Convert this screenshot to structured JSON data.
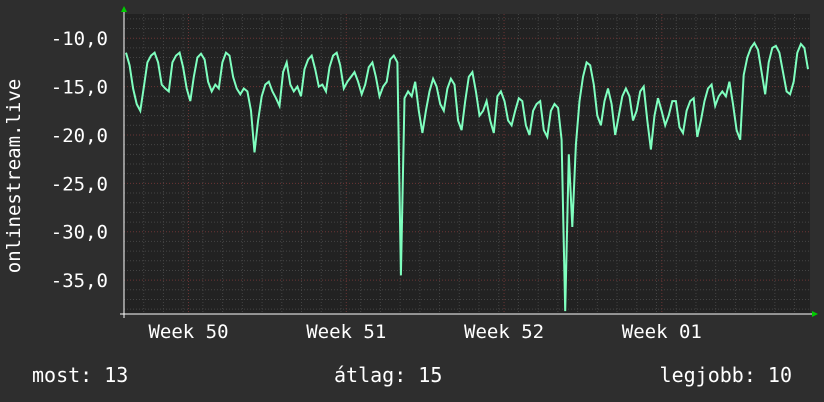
{
  "colors": {
    "background": "#2e2e2e",
    "plot_background": "#222222",
    "grid_major": "#6b3535",
    "grid_minor": "#444444",
    "line": "#7fffbf",
    "axis_arrow": "#00cc00"
  },
  "chart_data": {
    "type": "line",
    "ylabel": "onlinestream.live",
    "ylim": [
      -38.5,
      -7.5
    ],
    "yticks": [
      -10,
      -15,
      -20,
      -25,
      -30,
      -35
    ],
    "ytick_labels": [
      "-10,0",
      "-15,0",
      "-20,0",
      "-25,0",
      "-30,0",
      "-35,0"
    ],
    "xlim": [
      0,
      100
    ],
    "xticks": [
      {
        "x": 9.4,
        "label": "Week 50"
      },
      {
        "x": 32.4,
        "label": "Week 51"
      },
      {
        "x": 55.4,
        "label": "Week 52"
      },
      {
        "x": 78.4,
        "label": "Week 01"
      }
    ],
    "grid": true,
    "series": [
      {
        "values": [
          -11.5,
          -12.8,
          -15.2,
          -16.8,
          -17.5,
          -15.0,
          -12.5,
          -11.8,
          -11.5,
          -12.5,
          -14.8,
          -15.2,
          -15.5,
          -12.5,
          -11.8,
          -11.5,
          -13.0,
          -15.2,
          -16.5,
          -14.0,
          -12.0,
          -11.6,
          -12.2,
          -14.5,
          -15.5,
          -14.8,
          -15.2,
          -12.5,
          -11.5,
          -11.8,
          -14.0,
          -15.2,
          -15.8,
          -15.2,
          -15.5,
          -17.5,
          -21.8,
          -18.5,
          -16.0,
          -14.8,
          -14.5,
          -15.5,
          -16.2,
          -17.0,
          -13.5,
          -12.5,
          -14.8,
          -15.5,
          -15.0,
          -16.0,
          -13.2,
          -12.2,
          -11.8,
          -13.2,
          -15.0,
          -14.8,
          -15.5,
          -13.0,
          -11.8,
          -11.5,
          -12.8,
          -15.2,
          -14.5,
          -14.0,
          -13.5,
          -14.5,
          -15.8,
          -14.8,
          -13.0,
          -12.5,
          -14.0,
          -16.0,
          -15.0,
          -14.5,
          -12.2,
          -11.8,
          -12.5,
          -34.5,
          -16.2,
          -15.5,
          -16.0,
          -14.5,
          -17.5,
          -19.8,
          -17.5,
          -15.5,
          -14.2,
          -15.0,
          -16.8,
          -17.5,
          -15.2,
          -14.2,
          -14.8,
          -18.5,
          -19.5,
          -16.5,
          -14.0,
          -13.5,
          -15.5,
          -18.0,
          -17.5,
          -16.5,
          -18.5,
          -19.8,
          -16.0,
          -15.5,
          -16.5,
          -18.5,
          -19.0,
          -17.5,
          -16.2,
          -16.5,
          -19.0,
          -20.0,
          -17.5,
          -16.8,
          -16.5,
          -19.5,
          -20.2,
          -17.5,
          -16.8,
          -17.2,
          -20.5,
          -38.2,
          -22.0,
          -29.5,
          -21.0,
          -16.5,
          -14.0,
          -12.5,
          -12.8,
          -14.8,
          -18.0,
          -19.0,
          -16.5,
          -15.2,
          -16.8,
          -20.0,
          -18.0,
          -16.0,
          -15.2,
          -16.0,
          -18.5,
          -17.5,
          -15.5,
          -15.0,
          -18.5,
          -21.5,
          -18.0,
          -16.2,
          -17.5,
          -19.0,
          -18.0,
          -16.5,
          -16.5,
          -19.2,
          -19.8,
          -17.5,
          -16.5,
          -16.2,
          -20.2,
          -18.5,
          -16.5,
          -15.2,
          -14.8,
          -17.0,
          -16.0,
          -15.5,
          -16.0,
          -14.5,
          -16.8,
          -19.5,
          -20.5,
          -13.8,
          -12.0,
          -11.0,
          -10.5,
          -11.2,
          -13.5,
          -15.8,
          -12.5,
          -11.0,
          -10.8,
          -11.5,
          -13.5,
          -15.5,
          -15.8,
          -14.5,
          -11.5,
          -10.6,
          -11.0,
          -13.2
        ]
      }
    ]
  },
  "stats": {
    "now_label": "most:",
    "now_value": "13",
    "avg_label": "átlag:",
    "avg_value": "15",
    "best_label": "legjobb:",
    "best_value": "10"
  }
}
